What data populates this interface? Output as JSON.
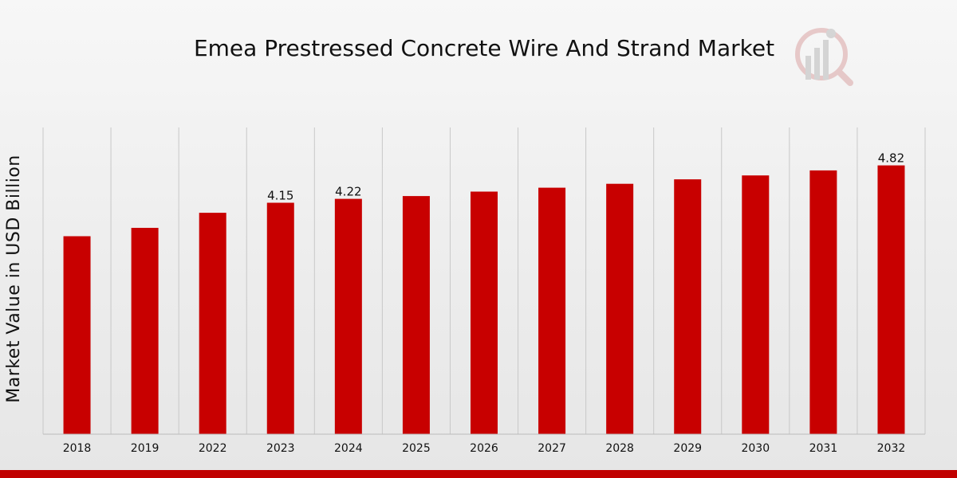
{
  "chart_data": {
    "type": "bar",
    "title": "Emea Prestressed Concrete  Wire And Strand Market",
    "xlabel": "",
    "ylabel": "Market Value in USD Billion",
    "categories": [
      "2018",
      "2019",
      "2022",
      "2023",
      "2024",
      "2025",
      "2026",
      "2027",
      "2028",
      "2029",
      "2030",
      "2031",
      "2032"
    ],
    "values": [
      3.55,
      3.7,
      3.97,
      4.15,
      4.22,
      4.27,
      4.35,
      4.42,
      4.49,
      4.57,
      4.64,
      4.73,
      4.82
    ],
    "data_labels": [
      "",
      "",
      "",
      "4.15",
      "4.22",
      "",
      "",
      "",
      "",
      "",
      "",
      "",
      "4.82"
    ],
    "ylim": [
      0,
      5.5
    ],
    "grid": true,
    "colors": {
      "bar": "#c80000",
      "grid": "#c8c8c8",
      "band": "#c00000"
    }
  }
}
